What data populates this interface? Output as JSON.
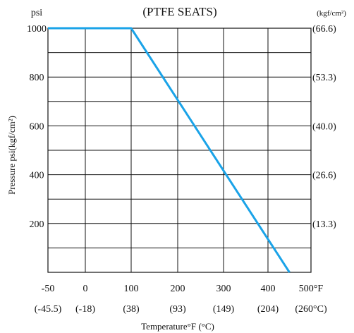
{
  "chart_data": {
    "type": "line",
    "title": "(PTFE  SEATS)",
    "left_axis_unit": "psi",
    "right_axis_unit": "(kgf/cm²)",
    "ylabel": "Pressure  psi(kgf/cm²)",
    "xlabel": "Temperature°F (°C)",
    "xlim": [
      -50,
      500
    ],
    "ylim": [
      0,
      1000
    ],
    "x_ticks": [
      -50,
      0,
      100,
      200,
      300,
      400,
      500
    ],
    "x_tick_labels": [
      "-50",
      "0",
      "100",
      "200",
      "300",
      "400",
      "500°F"
    ],
    "x_tick_labels_celsius": [
      "(-45.5)",
      "(-18)",
      "(38)",
      "(93)",
      "(149)",
      "(204)",
      "(260°C)"
    ],
    "y_ticks": [
      200,
      400,
      600,
      800,
      1000
    ],
    "y_tick_labels": [
      "200",
      "400",
      "600",
      "800",
      "1000"
    ],
    "y_tick_labels_right": [
      "(13.3)",
      "(26.6)",
      "(40.0)",
      "(53.3)",
      "(66.6)"
    ],
    "grid": true,
    "series": [
      {
        "x": [
          -50,
          100,
          450
        ],
        "y": [
          1000,
          1000,
          0
        ],
        "color": "#1aa3e8"
      }
    ]
  }
}
